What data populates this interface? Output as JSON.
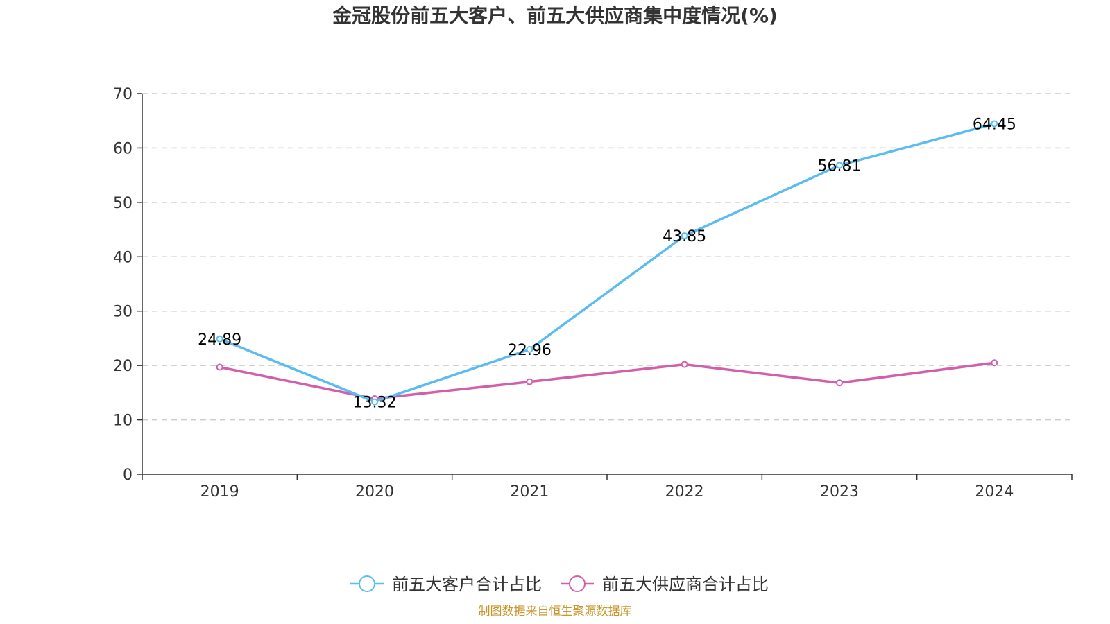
{
  "chart_data": {
    "type": "line",
    "title": "金冠股份前五大客户、前五大供应商集中度情况(%)",
    "categories": [
      "2019",
      "2020",
      "2021",
      "2022",
      "2023",
      "2024"
    ],
    "ylim": [
      0,
      70
    ],
    "yticks": [
      0,
      10,
      20,
      30,
      40,
      50,
      60,
      70
    ],
    "ytick_labels": [
      "0",
      "10",
      "20",
      "30",
      "40",
      "50",
      "60",
      "70"
    ],
    "grid": true,
    "xlabel": "",
    "ylabel": "",
    "legend_position": "bottom-center",
    "series": [
      {
        "name": "前五大客户合计占比",
        "color": "#5bbcf0",
        "values": [
          24.89,
          13.32,
          22.96,
          43.85,
          56.81,
          64.45
        ],
        "labels": [
          "24.89",
          "13.32",
          "22.96",
          "43.85",
          "56.81",
          "64.45"
        ],
        "show_labels": true
      },
      {
        "name": "前五大供应商合计占比",
        "color": "#d25fac",
        "values": [
          19.7,
          13.9,
          17.0,
          20.2,
          16.8,
          20.5
        ],
        "show_labels": false
      }
    ]
  },
  "source": {
    "text": "制图数据来自恒生聚源数据库",
    "color": "#c8962b"
  }
}
